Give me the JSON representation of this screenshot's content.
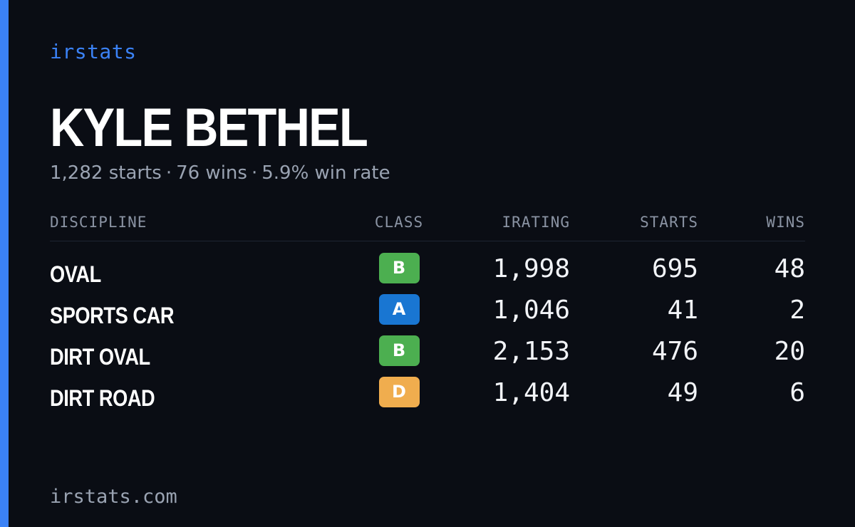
{
  "brand": "irstats",
  "player": {
    "name": "KYLE BETHEL",
    "starts": "1,282 starts",
    "wins": "76 wins",
    "win_rate": "5.9% win rate",
    "separator": "·"
  },
  "table": {
    "headers": {
      "discipline": "DISCIPLINE",
      "class": "CLASS",
      "irating": "IRATING",
      "starts": "STARTS",
      "wins": "WINS"
    },
    "rows": [
      {
        "discipline": "OVAL",
        "class": "B",
        "irating": "1,998",
        "starts": "695",
        "wins": "48"
      },
      {
        "discipline": "SPORTS CAR",
        "class": "A",
        "irating": "1,046",
        "starts": "41",
        "wins": "2"
      },
      {
        "discipline": "DIRT OVAL",
        "class": "B",
        "irating": "2,153",
        "starts": "476",
        "wins": "20"
      },
      {
        "discipline": "DIRT ROAD",
        "class": "D",
        "irating": "1,404",
        "starts": "49",
        "wins": "6"
      }
    ]
  },
  "colors": {
    "background": "#0a0d14",
    "accent": "#3b82f6",
    "class_B": "#4caf50",
    "class_A": "#1976d2",
    "class_D": "#f0ad4e"
  },
  "footer": "irstats.com"
}
